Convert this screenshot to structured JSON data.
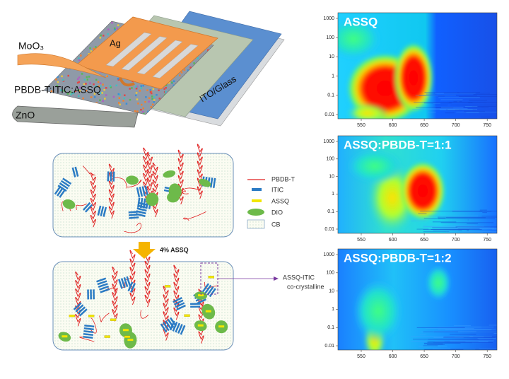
{
  "device": {
    "moo3": "MoO₃",
    "ag": "Ag",
    "ito": "ITO/Glass",
    "active": "PBDB-T:ITIC:ASSQ",
    "zno": "ZnO"
  },
  "legend": [
    "PBDB-T",
    "ITIC",
    "ASSQ",
    "DIO",
    "CB"
  ],
  "arrow_label": "4% ASSQ",
  "callout": [
    "ASSQ-ITIC",
    "co-crystalline"
  ],
  "panels": [
    {
      "title": "ASSQ",
      "yticks": [
        1000,
        100,
        10,
        1,
        0.1,
        0.01
      ],
      "xticks": [
        550,
        600,
        650,
        700,
        750
      ]
    },
    {
      "title": "ASSQ:PBDB-T=1:1",
      "yticks": [
        1000,
        100,
        10,
        1,
        0.1,
        0.01
      ],
      "xticks": [
        550,
        600,
        650,
        700,
        750
      ]
    },
    {
      "title": "ASSQ:PBDB-T=1:2",
      "yticks": [
        1000,
        100,
        10,
        1,
        0.1,
        0.01
      ],
      "xticks": [
        550,
        600,
        650,
        700,
        750
      ]
    }
  ]
}
